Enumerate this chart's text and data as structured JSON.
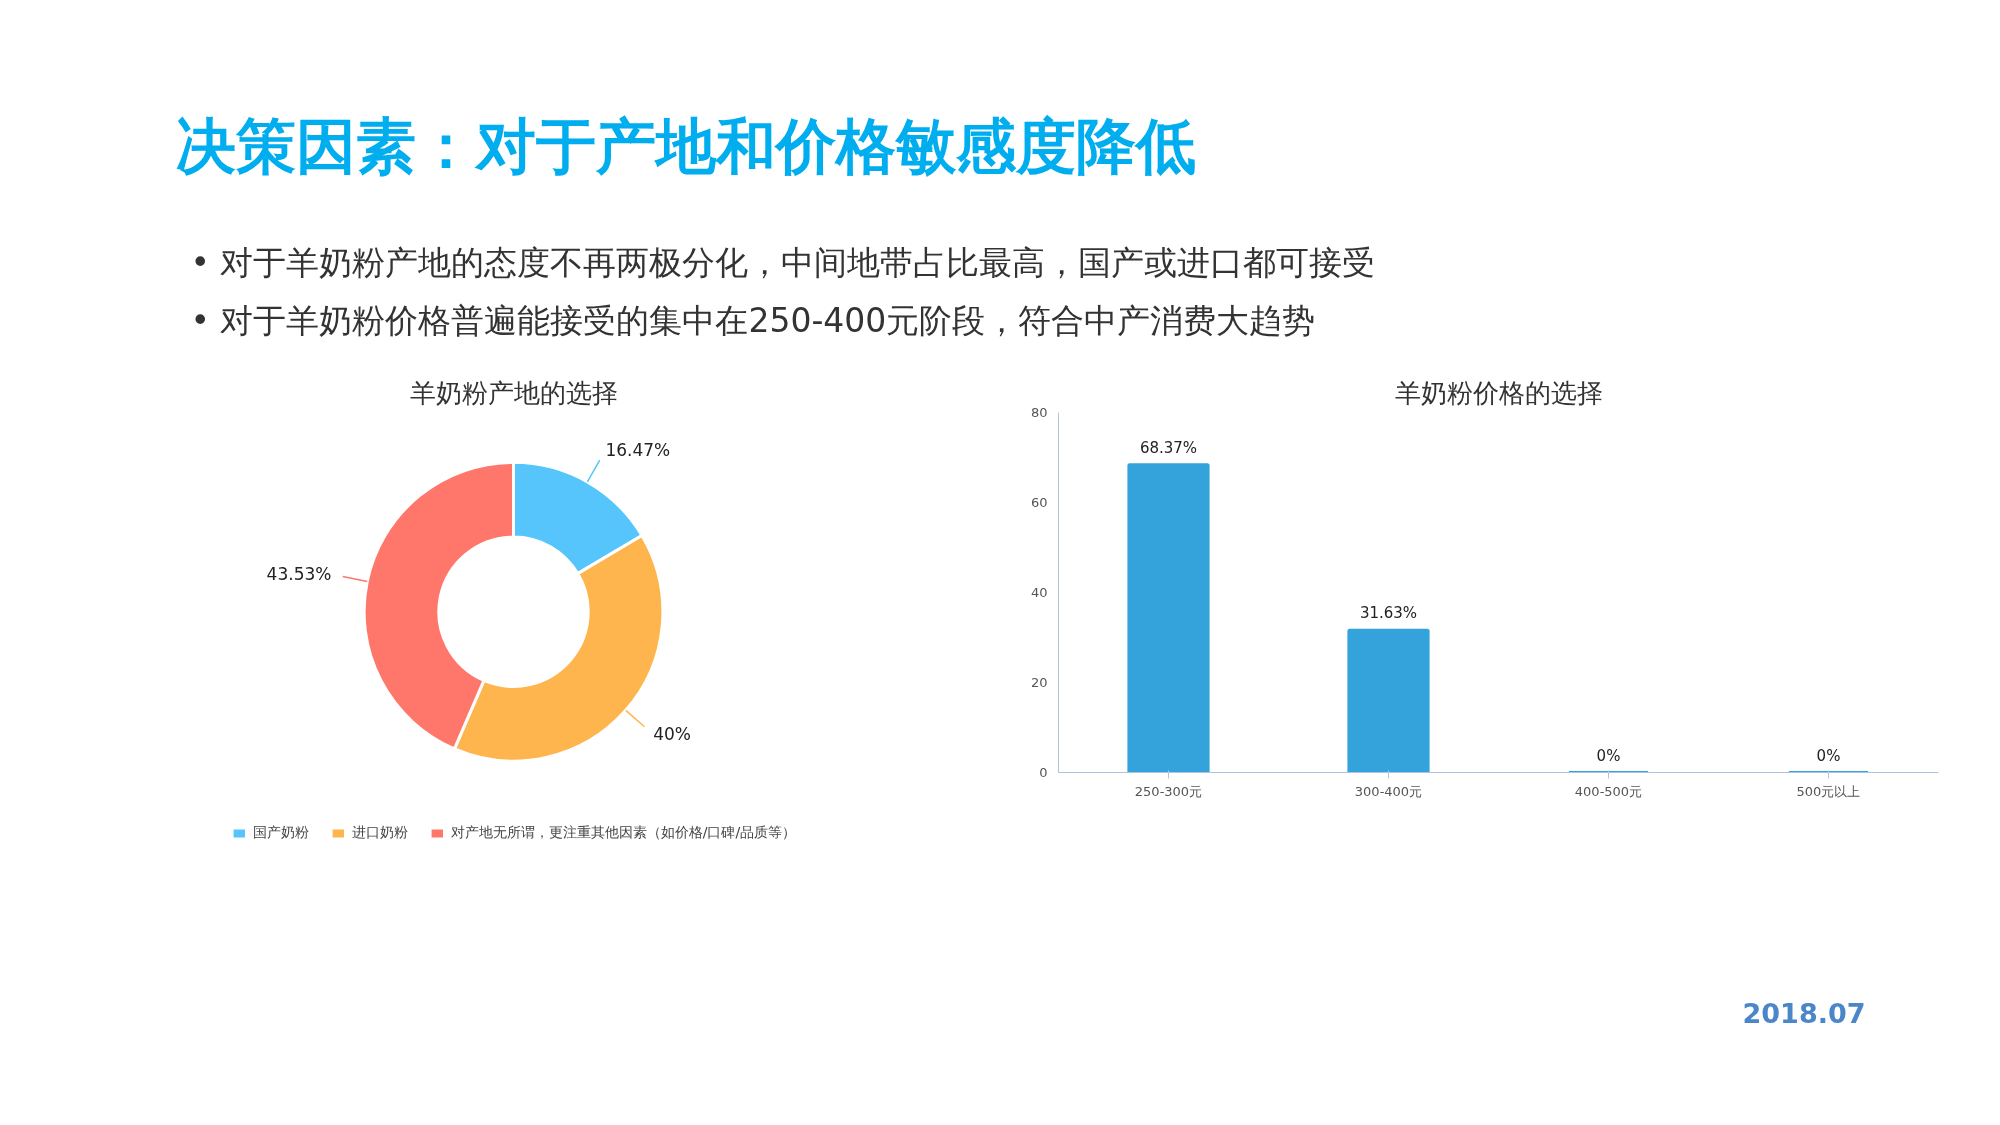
{
  "chart_data": [
    {
      "type": "other",
      "title": "决策因素：对于产地和价格敏感度降低",
      "annotations": [
        "•  对于羊奶粉产地的态度不再两极分化，中间地带占比最高，国产或进口都可接受",
        "•  对于羊奶粉价格普遍能接受的集中在250-400元阶段，符合中产消费大趋势",
        "2018.07"
      ]
    },
    {
      "type": "donut",
      "title": "羊奶粉产地的选择",
      "categories": [
        "国产奶粉",
        "进口奶粉",
        "对产地无所谓，更注重其他因素（如价格/口碑/品质等）"
      ],
      "values": [
        16.47,
        40,
        43.53
      ],
      "colors": [
        "#55c5fb",
        "#ffb54d",
        "#ff766a"
      ],
      "value_labels": [
        "16.47%",
        "40%",
        "43.53%"
      ],
      "legend": "bottom"
    },
    {
      "type": "bar",
      "title": "羊奶粉价格的选择",
      "categories": [
        "250-300元",
        "300-400元",
        "400-500元",
        "500元以上"
      ],
      "values": [
        68.37,
        31.63,
        0,
        0
      ],
      "color": "#35a3db",
      "value_labels": [
        "68.37%",
        "31.63%",
        "0%",
        "0%"
      ],
      "ylim": [
        0,
        80
      ],
      "yticks": [
        0,
        20,
        40,
        60,
        80
      ],
      "grid": false,
      "legend": false
    }
  ]
}
